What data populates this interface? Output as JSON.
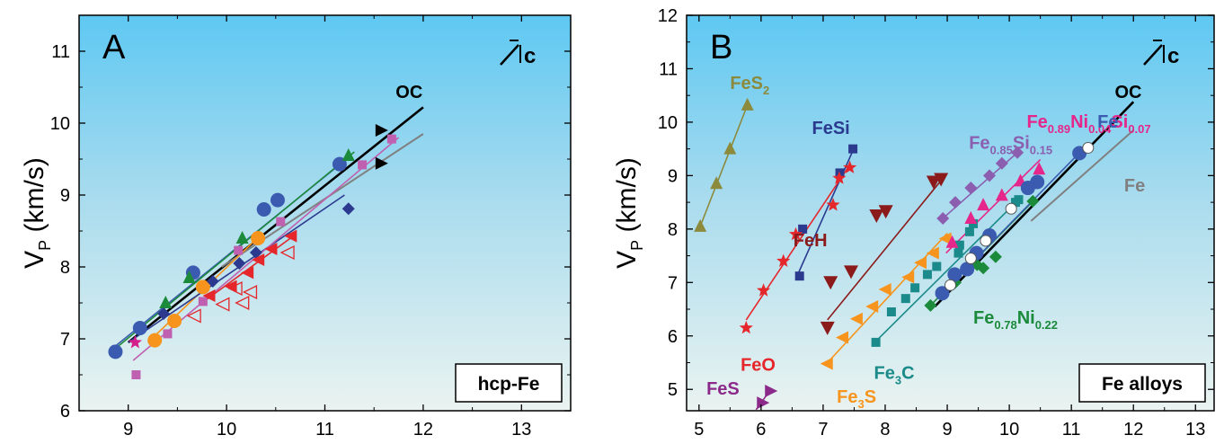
{
  "chart_data": [
    {
      "panel": "A",
      "type": "scatter",
      "xlim": [
        8.5,
        13.5
      ],
      "ylim": [
        6,
        11.5
      ],
      "xticks": [
        9,
        10,
        11,
        12,
        13
      ],
      "yticks": [
        6,
        7,
        8,
        9,
        10,
        11
      ],
      "ylabel_main": "V",
      "ylabel_sub": "P",
      "ylabel_unit": "(km/s)",
      "orientation_label": "c",
      "box_label": "hcp-Fe",
      "reference_lines": [
        {
          "label": "OC",
          "color": "#000000",
          "points": [
            [
              9.0,
              6.95
            ],
            [
              12.0,
              10.22
            ]
          ]
        },
        {
          "label": "",
          "color": "#808080",
          "points": [
            [
              9.95,
              8.0
            ],
            [
              12.0,
              9.85
            ]
          ]
        }
      ],
      "series": [
        {
          "marker": "circle",
          "color": "#3a5bb0",
          "points": [
            [
              8.87,
              6.82
            ],
            [
              9.12,
              7.15
            ],
            [
              9.66,
              7.92
            ],
            [
              10.38,
              8.8
            ],
            [
              10.52,
              8.93
            ],
            [
              11.15,
              9.43
            ]
          ],
          "fit": [
            [
              8.87,
              6.9
            ],
            [
              11.22,
              9.5
            ]
          ]
        },
        {
          "marker": "circle",
          "color": "#f7941d",
          "points": [
            [
              9.27,
              6.98
            ],
            [
              9.47,
              7.25
            ],
            [
              9.76,
              7.72
            ],
            [
              10.32,
              8.4
            ]
          ],
          "fit": [
            [
              9.2,
              6.95
            ],
            [
              10.35,
              8.45
            ]
          ]
        },
        {
          "marker": "triangle-up",
          "color": "#1b8a3a",
          "points": [
            [
              9.38,
              7.5
            ],
            [
              9.62,
              7.85
            ],
            [
              10.16,
              8.4
            ],
            [
              11.24,
              9.55
            ]
          ],
          "fit": [
            [
              8.9,
              6.9
            ],
            [
              11.3,
              9.6
            ]
          ]
        },
        {
          "marker": "diamond",
          "color": "#2b3a8f",
          "points": [
            [
              9.36,
              7.35
            ],
            [
              9.86,
              7.8
            ],
            [
              10.13,
              8.05
            ],
            [
              10.3,
              8.2
            ],
            [
              11.24,
              8.81
            ]
          ],
          "fit": [
            [
              9.0,
              6.95
            ],
            [
              11.2,
              9.0
            ]
          ]
        },
        {
          "marker": "square",
          "color": "#c060b0",
          "points": [
            [
              9.08,
              6.5
            ],
            [
              9.4,
              7.07
            ],
            [
              9.76,
              7.52
            ],
            [
              10.12,
              8.23
            ],
            [
              10.55,
              8.63
            ],
            [
              11.38,
              9.42
            ],
            [
              11.68,
              9.78
            ]
          ],
          "fit": [
            [
              9.05,
              6.7
            ],
            [
              11.75,
              9.8
            ]
          ]
        },
        {
          "marker": "star",
          "color": "#d4208a",
          "points": [
            [
              9.07,
              6.95
            ]
          ]
        },
        {
          "marker": "triangle-left",
          "color": "#e5262b",
          "points": [
            [
              9.83,
              7.6
            ],
            [
              10.05,
              7.73
            ],
            [
              10.22,
              7.92
            ],
            [
              10.33,
              8.1
            ],
            [
              10.46,
              8.25
            ],
            [
              10.66,
              8.43
            ]
          ],
          "fit": [
            [
              9.8,
              7.55
            ],
            [
              10.7,
              8.45
            ]
          ]
        },
        {
          "marker": "triangle-left-open",
          "color": "#e5262b",
          "points": [
            [
              9.68,
              7.32
            ],
            [
              9.97,
              7.48
            ],
            [
              10.1,
              7.7
            ],
            [
              10.17,
              7.5
            ],
            [
              10.25,
              7.65
            ],
            [
              10.63,
              8.2
            ]
          ]
        },
        {
          "marker": "triangle-right",
          "color": "#000000",
          "points": [
            [
              11.57,
              9.9
            ],
            [
              11.57,
              9.44
            ]
          ]
        }
      ]
    },
    {
      "panel": "B",
      "type": "scatter",
      "xlim": [
        4.8,
        13.3
      ],
      "ylim": [
        4.6,
        12
      ],
      "xticks": [
        5,
        6,
        7,
        8,
        9,
        10,
        11,
        12,
        13
      ],
      "yticks": [
        5,
        6,
        7,
        8,
        9,
        10,
        11,
        12
      ],
      "ylabel_main": "V",
      "ylabel_sub": "P",
      "ylabel_unit": "(km/s)",
      "orientation_label": "c",
      "box_label": "Fe alloys",
      "reference_lines": [
        {
          "label": "OC",
          "color": "#000000",
          "points": [
            [
              8.8,
              6.55
            ],
            [
              12.0,
              10.38
            ]
          ]
        },
        {
          "label": "Fe",
          "color": "#808080",
          "points": [
            [
              10.35,
              8.15
            ],
            [
              12.0,
              9.85
            ]
          ]
        }
      ],
      "series": [
        {
          "label": "FeS",
          "sub": "2",
          "marker": "triangle-up",
          "color": "#8c8a3c",
          "points": [
            [
              5.02,
              8.05
            ],
            [
              5.28,
              8.85
            ],
            [
              5.5,
              9.5
            ],
            [
              5.78,
              10.32
            ]
          ],
          "fit": [
            [
              5.02,
              8.05
            ],
            [
              5.78,
              10.32
            ]
          ],
          "label_xy": [
            5.5,
            10.62
          ]
        },
        {
          "label": "FeSi",
          "sub": "",
          "marker": "square",
          "color": "#2b3a8f",
          "points": [
            [
              6.62,
              7.12
            ],
            [
              6.67,
              8.0
            ],
            [
              7.27,
              9.05
            ],
            [
              7.48,
              9.5
            ]
          ],
          "fit": [
            [
              6.58,
              7.12
            ],
            [
              7.5,
              9.52
            ]
          ],
          "label_xy": [
            6.82,
            9.78
          ]
        },
        {
          "label": "FeO",
          "sub": "",
          "marker": "star",
          "color": "#e5262b",
          "points": [
            [
              5.76,
              6.15
            ],
            [
              6.04,
              6.85
            ],
            [
              6.36,
              7.4
            ],
            [
              6.56,
              7.9
            ],
            [
              7.16,
              8.45
            ],
            [
              7.26,
              8.95
            ],
            [
              7.43,
              9.15
            ]
          ],
          "fit": [
            [
              5.76,
              6.3
            ],
            [
              7.43,
              9.2
            ]
          ],
          "label_xy": [
            5.67,
            5.35
          ]
        },
        {
          "label": "FeH",
          "sub": "",
          "marker": "triangle-down",
          "color": "#8b1a1a",
          "points": [
            [
              7.07,
              6.15
            ],
            [
              7.12,
              7.0
            ],
            [
              7.45,
              7.2
            ],
            [
              7.86,
              8.25
            ],
            [
              8.01,
              8.33
            ],
            [
              8.78,
              8.88
            ],
            [
              8.9,
              8.93
            ]
          ],
          "fit": [
            [
              7.07,
              6.3
            ],
            [
              8.95,
              8.98
            ]
          ],
          "label_xy": [
            6.52,
            7.68
          ]
        },
        {
          "label": "FeS",
          "sub": "",
          "marker": "triangle-right",
          "color": "#8b2a8a",
          "points": [
            [
              6.02,
              4.75
            ],
            [
              6.15,
              4.97
            ]
          ],
          "fit": [
            [
              5.92,
              4.62
            ],
            [
              6.15,
              4.99
            ]
          ],
          "label_xy": [
            5.12,
            4.9
          ]
        },
        {
          "label": "Fe",
          "sub": "3",
          "sub2": "S",
          "marker": "triangle-left",
          "color": "#f7941d",
          "points": [
            [
              7.07,
              5.48
            ],
            [
              7.32,
              5.97
            ],
            [
              7.55,
              6.32
            ],
            [
              7.8,
              6.55
            ],
            [
              8.01,
              6.87
            ],
            [
              8.38,
              7.1
            ],
            [
              8.58,
              7.37
            ],
            [
              8.78,
              7.55
            ],
            [
              8.98,
              7.82
            ]
          ],
          "fit": [
            [
              7.07,
              5.5
            ],
            [
              9.0,
              7.92
            ]
          ],
          "label_xy": [
            7.22,
            4.75
          ]
        },
        {
          "label": "Fe",
          "sub": "3",
          "sub2": "C",
          "marker": "square",
          "color": "#1a8a8a",
          "points": [
            [
              7.85,
              5.88
            ],
            [
              8.1,
              6.45
            ],
            [
              8.33,
              6.7
            ],
            [
              8.48,
              6.9
            ],
            [
              8.68,
              7.15
            ],
            [
              8.83,
              7.3
            ],
            [
              9.18,
              7.55
            ],
            [
              9.2,
              7.7
            ],
            [
              9.36,
              7.95
            ],
            [
              9.42,
              8.1
            ],
            [
              10.1,
              8.5
            ],
            [
              10.15,
              8.55
            ]
          ],
          "fit": [
            [
              7.85,
              5.9
            ],
            [
              10.15,
              8.55
            ]
          ],
          "label_xy": [
            7.82,
            5.2
          ]
        },
        {
          "label": "Fe",
          "sub": "0.85",
          "sub2": "Si",
          "sub3": "0.15",
          "marker": "diamond",
          "color": "#8b5eb0",
          "points": [
            [
              8.93,
              8.2
            ],
            [
              9.13,
              8.5
            ],
            [
              9.38,
              8.77
            ],
            [
              9.68,
              9.0
            ],
            [
              9.88,
              9.23
            ],
            [
              10.13,
              9.43
            ]
          ],
          "fit": [
            [
              8.93,
              8.2
            ],
            [
              10.13,
              9.43
            ]
          ],
          "label_xy": [
            9.35,
            9.5
          ]
        },
        {
          "label": "Fe",
          "sub": "0.89",
          "sub2": "Ni",
          "sub3": "0.04",
          "sub4": "Si",
          "sub5": "0.07",
          "marker": "triangle-up",
          "color": "#e5268a",
          "points": [
            [
              9.08,
              7.75
            ],
            [
              9.38,
              8.2
            ],
            [
              9.58,
              8.45
            ],
            [
              9.88,
              8.63
            ],
            [
              10.18,
              8.9
            ],
            [
              10.48,
              9.12
            ]
          ],
          "fit": [
            [
              8.98,
              7.55
            ],
            [
              10.5,
              9.3
            ]
          ],
          "label_xy": [
            10.28,
            9.9
          ]
        },
        {
          "label": "Fe",
          "sub": "0.78",
          "sub2": "Ni",
          "sub3": "0.22",
          "marker": "diamond",
          "color": "#1b8a3a",
          "points": [
            [
              8.73,
              6.57
            ],
            [
              9.13,
              7.0
            ],
            [
              9.48,
              7.33
            ],
            [
              9.58,
              7.27
            ],
            [
              9.78,
              7.48
            ],
            [
              10.38,
              8.52
            ]
          ],
          "fit": [
            [
              8.73,
              6.57
            ],
            [
              10.38,
              8.52
            ]
          ],
          "label_xy": [
            9.42,
            6.23
          ]
        },
        {
          "label": "Fe",
          "sub": "",
          "marker": "circle",
          "color": "#3a5bb0",
          "points": [
            [
              8.92,
              6.8
            ],
            [
              9.12,
              7.15
            ],
            [
              9.32,
              7.25
            ],
            [
              9.47,
              7.55
            ],
            [
              9.68,
              7.88
            ],
            [
              10.3,
              8.77
            ],
            [
              10.45,
              8.88
            ],
            [
              11.13,
              9.42
            ]
          ],
          "fit": [
            [
              8.92,
              6.8
            ],
            [
              11.15,
              9.45
            ]
          ],
          "label_xy": [
            11.42,
            9.9
          ]
        },
        {
          "label": "",
          "sub": "",
          "marker": "circle-open",
          "color": "#3a5bb0",
          "points": [
            [
              9.05,
              6.95
            ],
            [
              9.38,
              7.45
            ],
            [
              9.62,
              7.78
            ],
            [
              10.03,
              8.38
            ],
            [
              11.27,
              9.52
            ]
          ]
        }
      ],
      "line_labels": [
        {
          "text": "OC",
          "x": 11.7,
          "y": 10.45,
          "color": "#000000"
        },
        {
          "text": "Fe",
          "x": 11.85,
          "y": 8.7,
          "color": "#808080"
        }
      ]
    }
  ],
  "panelA_line_label": {
    "text": "OC",
    "x": 11.72,
    "y": 10.35,
    "color": "#000000"
  }
}
